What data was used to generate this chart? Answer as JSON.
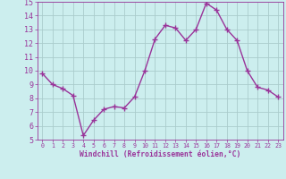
{
  "x": [
    0,
    1,
    2,
    3,
    4,
    5,
    6,
    7,
    8,
    9,
    10,
    11,
    12,
    13,
    14,
    15,
    16,
    17,
    18,
    19,
    20,
    21,
    22,
    23
  ],
  "y": [
    9.8,
    9.0,
    8.7,
    8.2,
    5.3,
    6.4,
    7.2,
    7.4,
    7.3,
    8.1,
    10.0,
    12.3,
    13.3,
    13.1,
    12.2,
    13.0,
    14.9,
    14.4,
    13.0,
    12.2,
    10.0,
    8.8,
    8.6,
    8.1
  ],
  "line_color": "#993399",
  "marker": "+",
  "marker_size": 4,
  "bg_color": "#cceeee",
  "grid_color": "#aacccc",
  "xlabel": "Windchill (Refroidissement éolien,°C)",
  "xlabel_color": "#993399",
  "tick_color": "#993399",
  "ylim": [
    5,
    15
  ],
  "xlim_min": -0.5,
  "xlim_max": 23.5,
  "yticks": [
    5,
    6,
    7,
    8,
    9,
    10,
    11,
    12,
    13,
    14,
    15
  ],
  "xticks": [
    0,
    1,
    2,
    3,
    4,
    5,
    6,
    7,
    8,
    9,
    10,
    11,
    12,
    13,
    14,
    15,
    16,
    17,
    18,
    19,
    20,
    21,
    22,
    23
  ],
  "spine_color": "#993399",
  "line_width": 1.0,
  "ytick_fontsize": 6.0,
  "xtick_fontsize": 4.8,
  "xlabel_fontsize": 5.8
}
